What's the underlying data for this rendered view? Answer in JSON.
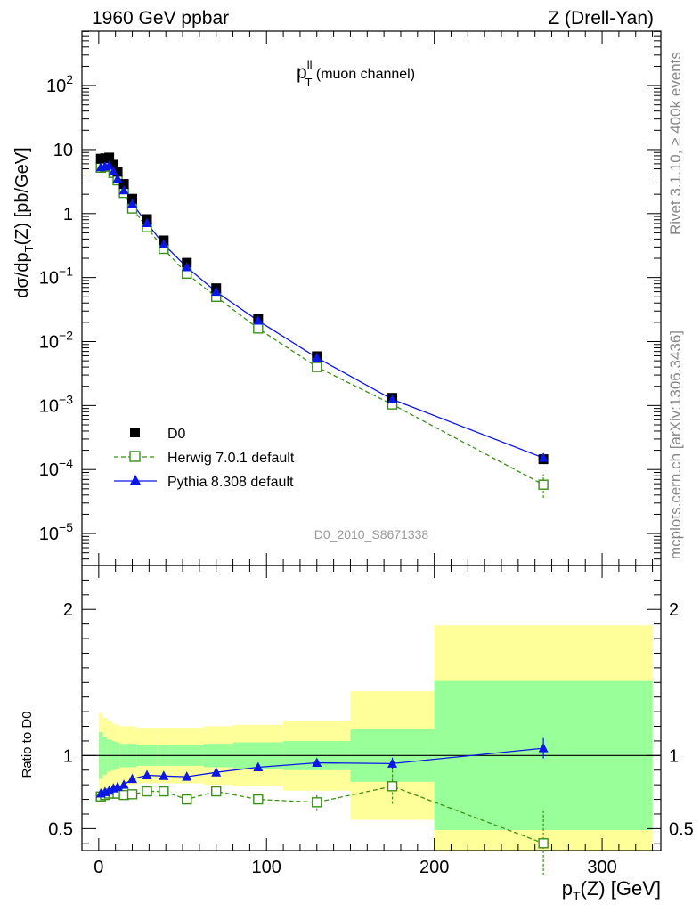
{
  "chart_data": {
    "type": "line",
    "header": {
      "left": "1960 GeV ppbar",
      "right": "Z (Drell-Yan)"
    },
    "side_labels": {
      "rivet": "Rivet 3.1.10, ≥ 400k events",
      "mcplots": "mcplots.cern.ch [arXiv:1306.3436]"
    },
    "analysis_id": "D0_2010_S8671338",
    "title_main": "p",
    "title_sup": "ll",
    "title_sub": "T",
    "title_rest": " (muon channel)",
    "main_ylabel": "dσ/dp_T(Z) [pb/GeV]",
    "ratio_ylabel": "Ratio to D0",
    "xlabel": "p_T(Z) [GeV]",
    "xlim": [
      -10,
      335
    ],
    "main_ylim_log10": [
      -5.5,
      2.85
    ],
    "ratio_ylim": [
      0.35,
      2.3
    ],
    "x_ticks": [
      0,
      100,
      200,
      300
    ],
    "x_tick_labels": [
      "0",
      "100",
      "200",
      "300"
    ],
    "main_y_ticks": [
      {
        "exp": -5,
        "label": "10",
        "sup": "−5"
      },
      {
        "exp": -4,
        "label": "10",
        "sup": "−4"
      },
      {
        "exp": -3,
        "label": "10",
        "sup": "−3"
      },
      {
        "exp": -2,
        "label": "10",
        "sup": "−2"
      },
      {
        "exp": -1,
        "label": "10",
        "sup": "−1"
      },
      {
        "exp": 0,
        "label": "1",
        "sup": ""
      },
      {
        "exp": 1,
        "label": "10",
        "sup": ""
      },
      {
        "exp": 2,
        "label": "10",
        "sup": "2"
      }
    ],
    "ratio_y_ticks": [
      0.5,
      1,
      2
    ],
    "ratio_y_tick_labels": [
      "0.5",
      "1",
      "2"
    ],
    "x": [
      1.25,
      3.75,
      6.25,
      8.75,
      11.25,
      15,
      20,
      28.75,
      38.75,
      52.5,
      70,
      95,
      130,
      175,
      265
    ],
    "series": [
      {
        "name": "D0",
        "style": "marker",
        "color": "#000000",
        "values": [
          7.2,
          7.3,
          7.5,
          5.8,
          4.5,
          2.9,
          1.7,
          0.82,
          0.38,
          0.17,
          0.068,
          0.023,
          0.0059,
          0.00132,
          0.000145
        ]
      },
      {
        "name": "Herwig 7.0.1 default",
        "style": "dashed",
        "color": "#3a9018",
        "values": [
          5.2,
          5.4,
          5.5,
          4.3,
          3.3,
          2.1,
          1.2,
          0.61,
          0.28,
          0.115,
          0.05,
          0.016,
          0.004,
          0.00104,
          5.8e-05
        ]
      },
      {
        "name": "Pythia 8.308 default",
        "style": "solid",
        "color": "#0b17e6",
        "values": [
          5.3,
          5.45,
          5.6,
          4.55,
          3.5,
          2.3,
          1.43,
          0.71,
          0.33,
          0.145,
          0.06,
          0.0212,
          0.0056,
          0.00125,
          0.000152
        ]
      }
    ],
    "ratio_series": [
      {
        "name": "Herwig 7.0.1 default",
        "values": [
          0.72,
          0.73,
          0.74,
          0.74,
          0.74,
          0.73,
          0.735,
          0.755,
          0.755,
          0.7,
          0.755,
          0.7,
          0.68,
          0.79,
          0.4
        ],
        "errors": [
          0.015,
          0.015,
          0.015,
          0.015,
          0.015,
          0.015,
          0.015,
          0.015,
          0.015,
          0.02,
          0.02,
          0.03,
          0.06,
          0.12,
          0.22
        ]
      },
      {
        "name": "Pythia 8.308 default",
        "values": [
          0.74,
          0.75,
          0.76,
          0.775,
          0.785,
          0.8,
          0.84,
          0.865,
          0.86,
          0.855,
          0.885,
          0.92,
          0.95,
          0.945,
          1.05
        ],
        "errors": [
          0.008,
          0.008,
          0.008,
          0.008,
          0.008,
          0.008,
          0.008,
          0.008,
          0.008,
          0.01,
          0.012,
          0.015,
          0.02,
          0.04,
          0.07
        ]
      }
    ],
    "uncertainty_bands": {
      "bins": [
        {
          "lo": 0,
          "hi": 2.5,
          "inner": 0.16,
          "outer": 0.29
        },
        {
          "lo": 2.5,
          "hi": 5,
          "inner": 0.13,
          "outer": 0.26
        },
        {
          "lo": 5,
          "hi": 7.5,
          "inner": 0.11,
          "outer": 0.24
        },
        {
          "lo": 7.5,
          "hi": 10,
          "inner": 0.1,
          "outer": 0.22
        },
        {
          "lo": 10,
          "hi": 12.5,
          "inner": 0.09,
          "outer": 0.21
        },
        {
          "lo": 12.5,
          "hi": 17.5,
          "inner": 0.08,
          "outer": 0.2
        },
        {
          "lo": 17.5,
          "hi": 22.5,
          "inner": 0.08,
          "outer": 0.2
        },
        {
          "lo": 22.5,
          "hi": 35,
          "inner": 0.07,
          "outer": 0.19
        },
        {
          "lo": 35,
          "hi": 42.5,
          "inner": 0.07,
          "outer": 0.19
        },
        {
          "lo": 42.5,
          "hi": 62.5,
          "inner": 0.07,
          "outer": 0.19
        },
        {
          "lo": 62.5,
          "hi": 80,
          "inner": 0.08,
          "outer": 0.2
        },
        {
          "lo": 80,
          "hi": 110,
          "inner": 0.09,
          "outer": 0.21
        },
        {
          "lo": 110,
          "hi": 150,
          "inner": 0.1,
          "outer": 0.24
        },
        {
          "lo": 150,
          "hi": 200,
          "inner": 0.18,
          "outer": 0.44
        },
        {
          "lo": 200,
          "hi": 330,
          "inner": 0.51,
          "outer": 0.89
        }
      ],
      "inner_color": "#99ff99",
      "outer_color": "#ffff99"
    },
    "legend": {
      "placement": "lower-left",
      "entries": [
        "D0",
        "Herwig 7.0.1 default",
        "Pythia 8.308 default"
      ]
    }
  }
}
